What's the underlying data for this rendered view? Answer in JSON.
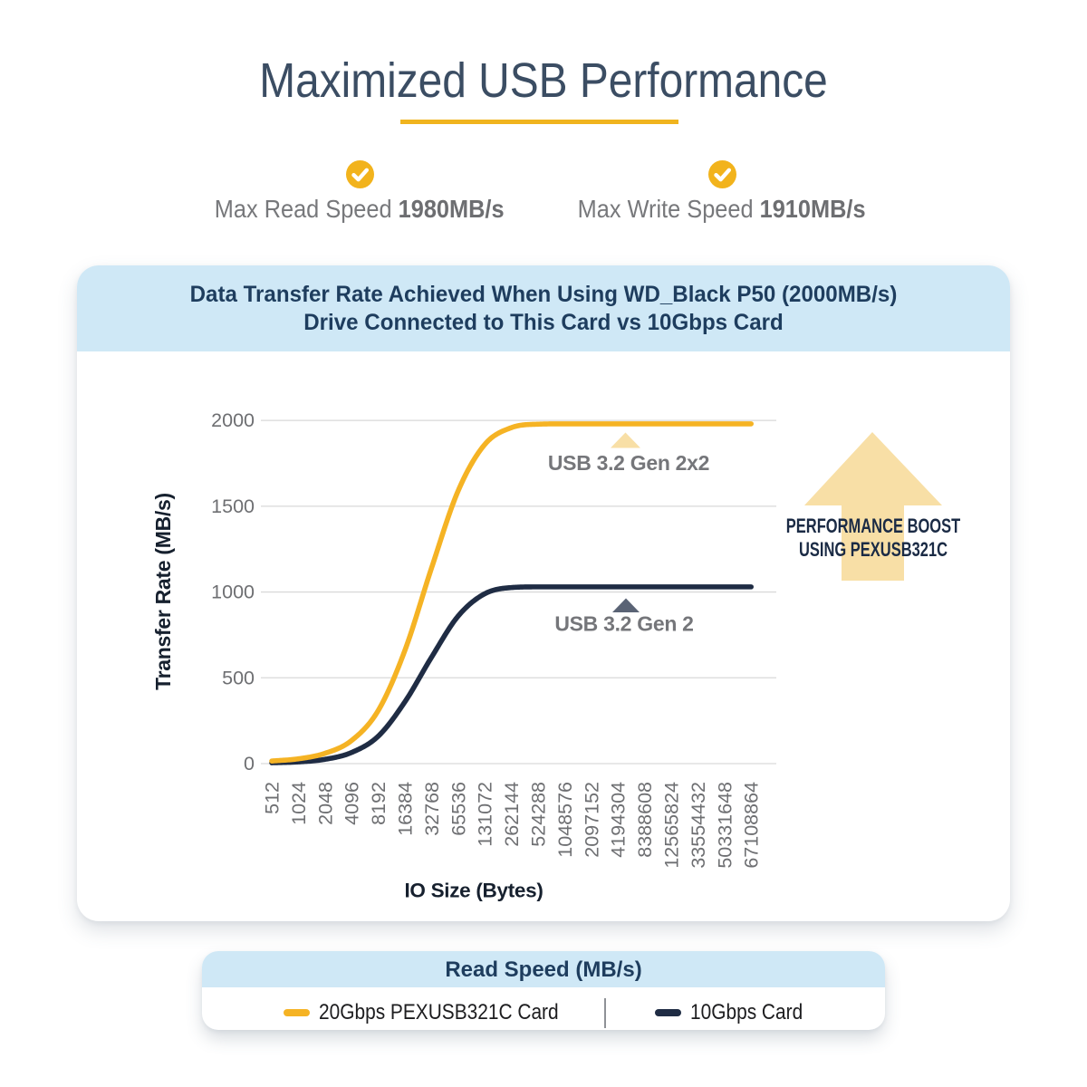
{
  "page": {
    "title": "Maximized USB Performance"
  },
  "stats": [
    {
      "label": "Max Read Speed ",
      "value": "1980MB/s"
    },
    {
      "label": "Max Write Speed ",
      "value": "1910MB/s"
    }
  ],
  "card": {
    "title_line1": "Data Transfer Rate Achieved When Using WD_Black P50 (2000MB/s)",
    "title_line2": "Drive Connected to This Card vs 10Gbps Card"
  },
  "boost": {
    "line1": "PERFORMANCE BOOST",
    "line2": "USING PEXUSB321C"
  },
  "legend": {
    "title": "Read Speed (MB/s)",
    "items": [
      {
        "label": "20Gbps PEXUSB321C Card",
        "color": "#f5b324"
      },
      {
        "label": "10Gbps Card",
        "color": "#1f2c44"
      }
    ]
  },
  "colors": {
    "accent_yellow": "#f5b324",
    "pale_yellow": "#f8dfa6",
    "navy_title": "#3b4d63",
    "navy_header": "#1e3d5e",
    "navy_dark": "#1b2b45",
    "dark_curve": "#1f2c44",
    "slate_marker": "#5a6375",
    "light_blue": "#cfe8f6",
    "gray_text": "#77787b",
    "tick_gray": "#6e6f72",
    "gridline": "#d9d9d9",
    "curve_label_gray": "#75767a"
  },
  "chart_data": {
    "type": "line",
    "title": "Data Transfer Rate Achieved When Using WD_Black P50 (2000MB/s) Drive Connected to This Card vs 10Gbps Card",
    "xlabel": "IO Size (Bytes)",
    "ylabel": "Transfer Rate (MB/s)",
    "x_scale": "categorical (IO size doubling per step)",
    "categories": [
      "512",
      "1024",
      "2048",
      "4096",
      "8192",
      "16384",
      "32768",
      "65536",
      "131072",
      "262144",
      "524288",
      "1048576",
      "2097152",
      "4194304",
      "8388608",
      "12565824",
      "33554432",
      "50331648",
      "67108864"
    ],
    "yticks": [
      0,
      500,
      1000,
      1500,
      2000
    ],
    "ylim": [
      0,
      2100
    ],
    "grid": "horizontal",
    "legend_position": "bottom",
    "series": [
      {
        "name": "20Gbps PEXUSB321C Card",
        "annotation": "USB 3.2 Gen 2x2",
        "color": "#f5b324",
        "marker_color": "#f8dfa6",
        "values": [
          15,
          28,
          60,
          135,
          310,
          660,
          1140,
          1590,
          1860,
          1958,
          1978,
          1980,
          1980,
          1980,
          1980,
          1980,
          1980,
          1980,
          1980
        ]
      },
      {
        "name": "10Gbps Card",
        "annotation": "USB 3.2 Gen 2",
        "color": "#1f2c44",
        "marker_color": "#5a6375",
        "values": [
          5,
          10,
          25,
          65,
          160,
          360,
          620,
          860,
          990,
          1026,
          1030,
          1030,
          1030,
          1030,
          1030,
          1030,
          1030,
          1030,
          1030
        ]
      }
    ]
  }
}
